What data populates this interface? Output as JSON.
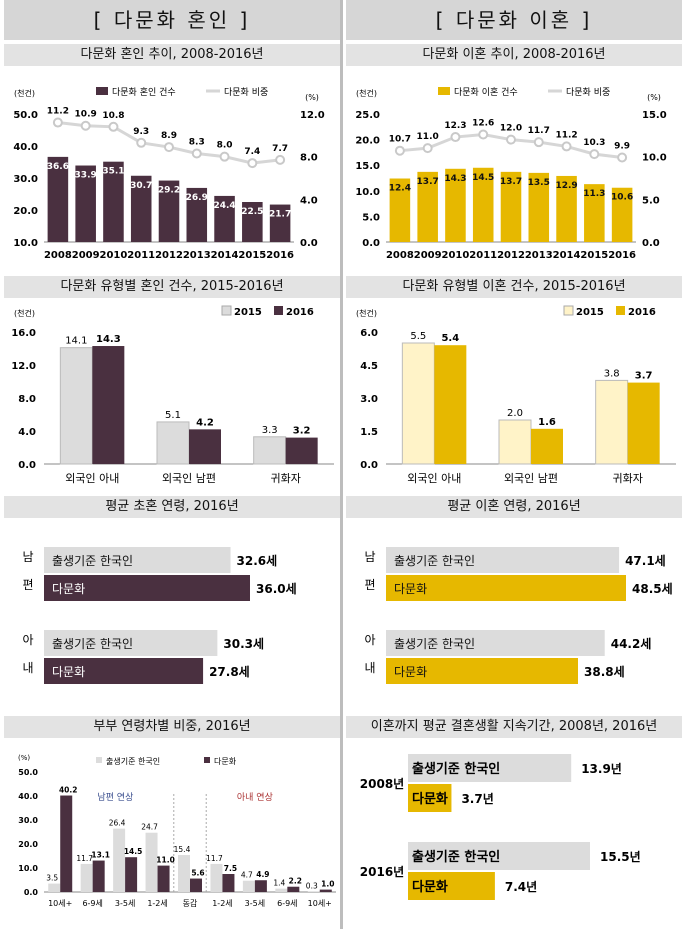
{
  "colors": {
    "marriage": "#4a3040",
    "divorce": "#e6b800",
    "light_gray": "#dcdcdc",
    "korean_2015": "#fff3c8",
    "line": "#d6d6d6"
  },
  "left": {
    "header": "[ 다문화 혼인 ]",
    "sections": {
      "trend": "다문화 혼인 추이, 2008-2016년",
      "type": "다문화 유형별 혼인 건수, 2015-2016년",
      "age": "평균 초혼 연령, 2016년",
      "agegap": "부부 연령차별 비중, 2016년"
    }
  },
  "right": {
    "header": "[ 다문화 이혼 ]",
    "sections": {
      "trend": "다문화 이혼 추이, 2008-2016년",
      "type": "다문화 유형별 이혼 건수, 2015-2016년",
      "age": "평균 이혼 연령, 2016년",
      "duration": "이혼까지 평균 결혼생활 지속기간, 2008년, 2016년"
    }
  },
  "chart_data": [
    {
      "id": "marriage_trend",
      "type": "bar",
      "categories": [
        "2008",
        "2009",
        "2010",
        "2011",
        "2012",
        "2013",
        "2014",
        "2015",
        "2016"
      ],
      "series": [
        {
          "name": "다문화 혼인 건수",
          "type": "bar",
          "axis": "left",
          "values": [
            36.6,
            33.9,
            35.1,
            30.7,
            29.2,
            26.9,
            24.4,
            22.5,
            21.7
          ]
        },
        {
          "name": "다문화 비중",
          "type": "line",
          "axis": "right",
          "values": [
            11.2,
            10.9,
            10.8,
            9.3,
            8.9,
            8.3,
            8.0,
            7.4,
            7.7
          ]
        }
      ],
      "ylabel": "(천건)",
      "y2label": "(%)",
      "ylim": [
        10,
        50
      ],
      "yticks": [
        "10.0",
        "20.0",
        "30.0",
        "40.0",
        "50.0"
      ],
      "y2lim": [
        0,
        12
      ],
      "y2ticks": [
        "0.0",
        "4.0",
        "8.0",
        "12.0"
      ]
    },
    {
      "id": "divorce_trend",
      "type": "bar",
      "categories": [
        "2008",
        "2009",
        "2010",
        "2011",
        "2012",
        "2013",
        "2014",
        "2015",
        "2016"
      ],
      "series": [
        {
          "name": "다문화 이혼 건수",
          "type": "bar",
          "axis": "left",
          "values": [
            12.4,
            13.7,
            14.3,
            14.5,
            13.7,
            13.5,
            12.9,
            11.3,
            10.6
          ]
        },
        {
          "name": "다문화 비중",
          "type": "line",
          "axis": "right",
          "values": [
            10.7,
            11.0,
            12.3,
            12.6,
            12.0,
            11.7,
            11.2,
            10.3,
            9.9
          ]
        }
      ],
      "ylabel": "(천건)",
      "y2label": "(%)",
      "ylim": [
        0,
        25
      ],
      "yticks": [
        "0.0",
        "5.0",
        "10.0",
        "15.0",
        "20.0",
        "25.0"
      ],
      "y2lim": [
        0,
        15
      ],
      "y2ticks": [
        "0.0",
        "5.0",
        "10.0",
        "15.0"
      ]
    },
    {
      "id": "marriage_type",
      "type": "bar",
      "categories": [
        "외국인 아내",
        "외국인 남편",
        "귀화자"
      ],
      "series": [
        {
          "name": "2015",
          "values": [
            14.1,
            5.1,
            3.3
          ]
        },
        {
          "name": "2016",
          "values": [
            14.3,
            4.2,
            3.2
          ]
        }
      ],
      "ylabel": "(천건)",
      "ylim": [
        0,
        16
      ],
      "yticks": [
        "0.0",
        "4.0",
        "8.0",
        "12.0",
        "16.0"
      ]
    },
    {
      "id": "divorce_type",
      "type": "bar",
      "categories": [
        "외국인 아내",
        "외국인 남편",
        "귀화자"
      ],
      "series": [
        {
          "name": "2015",
          "values": [
            5.5,
            2.0,
            3.8
          ]
        },
        {
          "name": "2016",
          "values": [
            5.4,
            1.6,
            3.7
          ]
        }
      ],
      "ylabel": "(천건)",
      "ylim": [
        0,
        6
      ],
      "yticks": [
        "0.0",
        "1.5",
        "3.0",
        "4.5",
        "6.0"
      ]
    },
    {
      "id": "first_marriage_age",
      "type": "bar",
      "orientation": "horizontal",
      "groups": [
        {
          "label": [
            "남",
            "편"
          ],
          "bars": [
            {
              "name": "출생기준 한국인",
              "value": 32.6,
              "label": "32.6세"
            },
            {
              "name": "다문화",
              "value": 36.0,
              "label": "36.0세"
            }
          ]
        },
        {
          "label": [
            "아",
            "내"
          ],
          "bars": [
            {
              "name": "출생기준 한국인",
              "value": 30.3,
              "label": "30.3세"
            },
            {
              "name": "다문화",
              "value": 27.8,
              "label": "27.8세"
            }
          ]
        }
      ]
    },
    {
      "id": "divorce_age",
      "type": "bar",
      "orientation": "horizontal",
      "groups": [
        {
          "label": [
            "남",
            "편"
          ],
          "bars": [
            {
              "name": "출생기준 한국인",
              "value": 47.1,
              "label": "47.1세"
            },
            {
              "name": "다문화",
              "value": 48.5,
              "label": "48.5세"
            }
          ]
        },
        {
          "label": [
            "아",
            "내"
          ],
          "bars": [
            {
              "name": "출생기준 한국인",
              "value": 44.2,
              "label": "44.2세"
            },
            {
              "name": "다문화",
              "value": 38.8,
              "label": "38.8세"
            }
          ]
        }
      ]
    },
    {
      "id": "age_gap",
      "type": "bar",
      "categories": [
        "10세+",
        "6-9세",
        "3-5세",
        "1-2세",
        "동갑",
        "1-2세",
        "3-5세",
        "6-9세",
        "10세+"
      ],
      "series": [
        {
          "name": "출생기준 한국인",
          "values": [
            3.5,
            11.7,
            26.4,
            24.7,
            15.4,
            11.7,
            4.7,
            1.4,
            0.3
          ]
        },
        {
          "name": "다문화",
          "values": [
            40.2,
            13.1,
            14.5,
            11.0,
            5.6,
            7.5,
            4.9,
            2.2,
            1.0
          ]
        }
      ],
      "annotations": [
        "남편 연상",
        "아내 연상"
      ],
      "ylabel": "(%)",
      "ylim": [
        0,
        50
      ],
      "yticks": [
        "0.0",
        "10.0",
        "20.0",
        "30.0",
        "40.0",
        "50.0"
      ]
    },
    {
      "id": "marriage_duration",
      "type": "bar",
      "orientation": "horizontal",
      "groups": [
        {
          "label": "2008년",
          "bars": [
            {
              "name": "출생기준 한국인",
              "value": 13.9,
              "label": "13.9년"
            },
            {
              "name": "다문화",
              "value": 3.7,
              "label": "3.7년"
            }
          ]
        },
        {
          "label": "2016년",
          "bars": [
            {
              "name": "출생기준 한국인",
              "value": 15.5,
              "label": "15.5년"
            },
            {
              "name": "다문화",
              "value": 7.4,
              "label": "7.4년"
            }
          ]
        }
      ]
    }
  ]
}
